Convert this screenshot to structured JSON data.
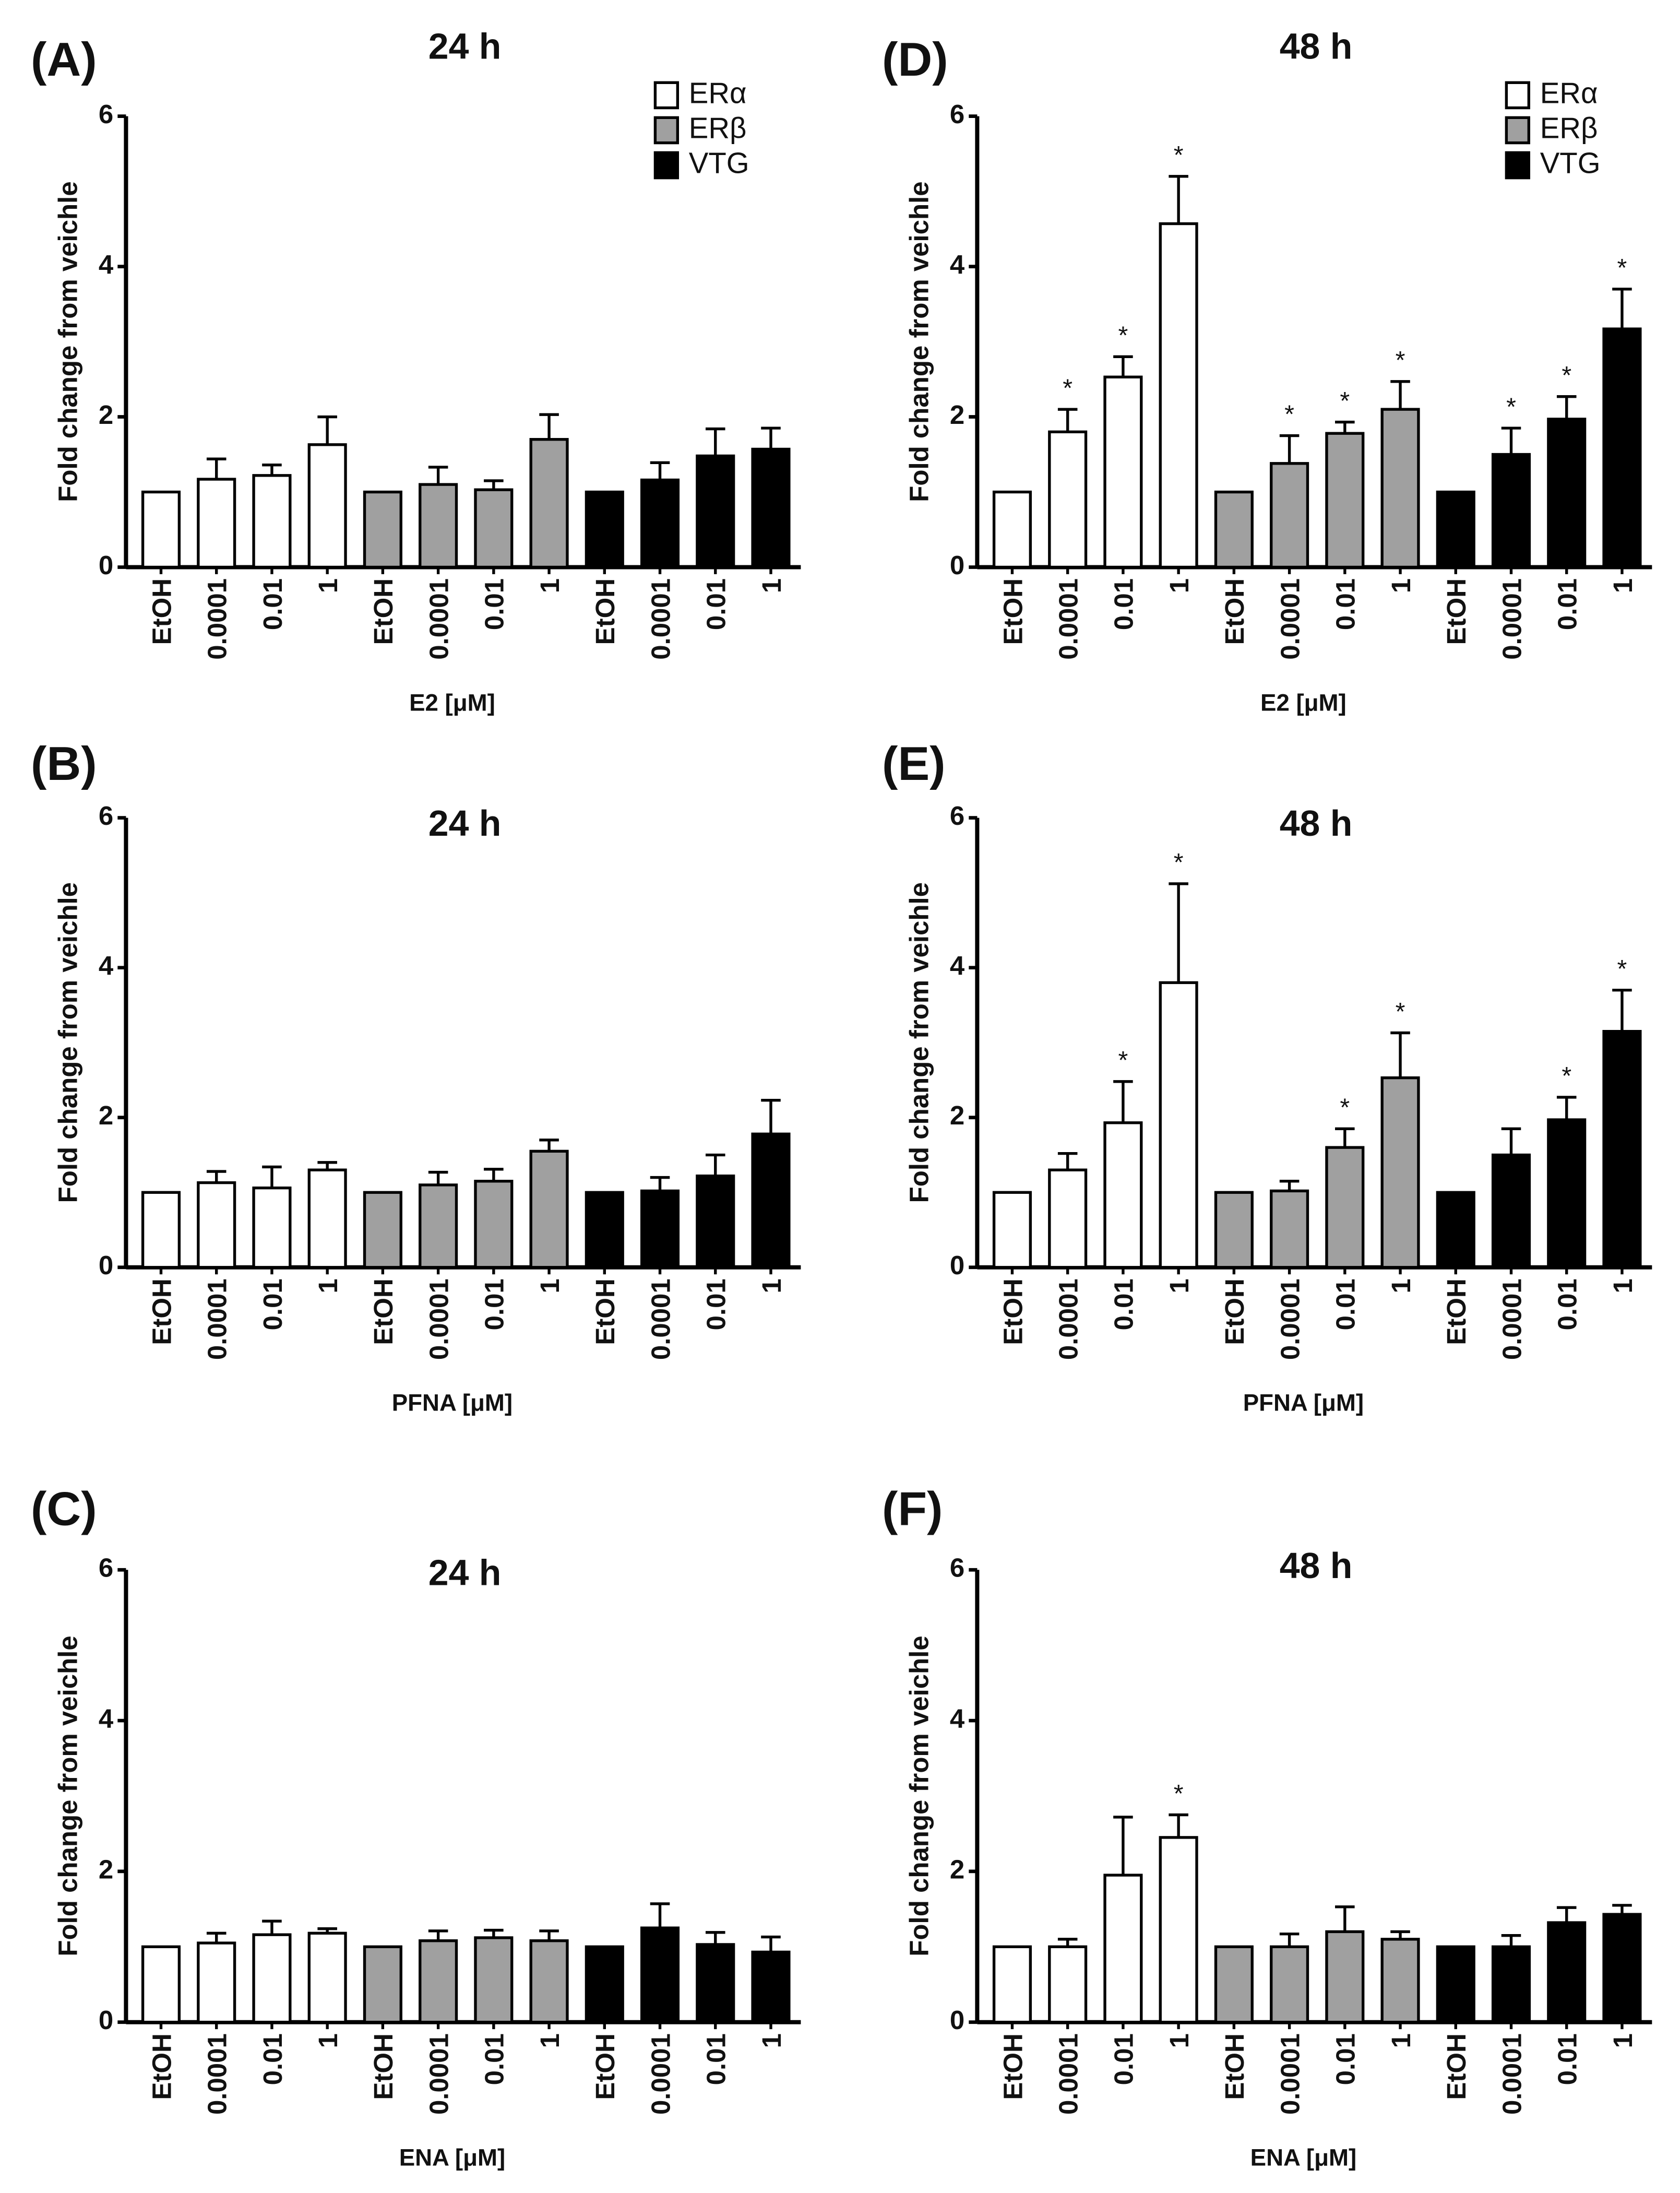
{
  "chart_data": [
    {
      "type": "bar",
      "panel": "(A)",
      "title": "24 h",
      "xlabel": "E2 [μM]",
      "ylabel": "Fold change from veichle",
      "legend": true,
      "categories": [
        "EtOH",
        "0.0001",
        "0.01",
        "1"
      ],
      "ylim": [
        0,
        6
      ],
      "yticks": [
        0,
        2,
        4,
        6
      ],
      "series": [
        {
          "name": "ERα",
          "color": "#ffffff",
          "values": [
            1.0,
            1.17,
            1.22,
            1.63
          ],
          "errors": [
            null,
            0.27,
            0.14,
            0.37
          ],
          "significance": [
            null,
            null,
            null,
            null
          ]
        },
        {
          "name": "ERβ",
          "color": "#a0a0a0",
          "values": [
            1.0,
            1.1,
            1.03,
            1.7
          ],
          "errors": [
            null,
            0.23,
            0.12,
            0.33
          ],
          "significance": [
            null,
            null,
            null,
            null
          ]
        },
        {
          "name": "VTG",
          "color": "#000000",
          "values": [
            1.0,
            1.16,
            1.48,
            1.57
          ],
          "errors": [
            null,
            0.23,
            0.36,
            0.28
          ],
          "significance": [
            null,
            null,
            null,
            null
          ]
        }
      ]
    },
    {
      "type": "bar",
      "panel": "(B)",
      "title": "24 h",
      "xlabel": "PFNA [μM]",
      "ylabel": "Fold change from veichle",
      "legend": false,
      "categories": [
        "EtOH",
        "0.0001",
        "0.01",
        "1"
      ],
      "ylim": [
        0,
        6
      ],
      "yticks": [
        0,
        2,
        4,
        6
      ],
      "series": [
        {
          "name": "ERα",
          "color": "#ffffff",
          "values": [
            1.0,
            1.13,
            1.06,
            1.3
          ],
          "errors": [
            null,
            0.15,
            0.28,
            0.1
          ],
          "significance": [
            null,
            null,
            null,
            null
          ]
        },
        {
          "name": "ERβ",
          "color": "#a0a0a0",
          "values": [
            1.0,
            1.1,
            1.15,
            1.55
          ],
          "errors": [
            null,
            0.17,
            0.16,
            0.15
          ],
          "significance": [
            null,
            null,
            null,
            null
          ]
        },
        {
          "name": "VTG",
          "color": "#000000",
          "values": [
            1.0,
            1.02,
            1.22,
            1.78
          ],
          "errors": [
            null,
            0.18,
            0.28,
            0.45
          ],
          "significance": [
            null,
            null,
            null,
            null
          ]
        }
      ]
    },
    {
      "type": "bar",
      "panel": "(C)",
      "title": "24 h",
      "xlabel": "ENA [μM]",
      "ylabel": "Fold change from veichle",
      "legend": false,
      "categories": [
        "EtOH",
        "0.0001",
        "0.01",
        "1"
      ],
      "ylim": [
        0,
        6
      ],
      "yticks": [
        0,
        2,
        4,
        6
      ],
      "series": [
        {
          "name": "ERα",
          "color": "#ffffff",
          "values": [
            1.0,
            1.05,
            1.16,
            1.18
          ],
          "errors": [
            null,
            0.13,
            0.18,
            0.06
          ],
          "significance": [
            null,
            null,
            null,
            null
          ]
        },
        {
          "name": "ERβ",
          "color": "#a0a0a0",
          "values": [
            1.0,
            1.08,
            1.12,
            1.08
          ],
          "errors": [
            null,
            0.13,
            0.1,
            0.13
          ],
          "significance": [
            null,
            null,
            null,
            null
          ]
        },
        {
          "name": "VTG",
          "color": "#000000",
          "values": [
            1.0,
            1.25,
            1.03,
            0.93
          ],
          "errors": [
            null,
            0.32,
            0.16,
            0.2
          ],
          "significance": [
            null,
            null,
            null,
            null
          ]
        }
      ]
    },
    {
      "type": "bar",
      "panel": "(D)",
      "title": "48 h",
      "xlabel": "E2 [μM]",
      "ylabel": "Fold change from veichle",
      "legend": true,
      "categories": [
        "EtOH",
        "0.0001",
        "0.01",
        "1"
      ],
      "ylim": [
        0,
        6
      ],
      "yticks": [
        0,
        2,
        4,
        6
      ],
      "series": [
        {
          "name": "ERα",
          "color": "#ffffff",
          "values": [
            1.0,
            1.8,
            2.53,
            4.57
          ],
          "errors": [
            null,
            0.3,
            0.27,
            0.63
          ],
          "significance": [
            null,
            "*",
            "*",
            "*"
          ]
        },
        {
          "name": "ERβ",
          "color": "#a0a0a0",
          "values": [
            1.0,
            1.38,
            1.78,
            2.1
          ],
          "errors": [
            null,
            0.37,
            0.15,
            0.37
          ],
          "significance": [
            null,
            "*",
            "*",
            "*"
          ]
        },
        {
          "name": "VTG",
          "color": "#000000",
          "values": [
            1.0,
            1.5,
            1.97,
            3.17
          ],
          "errors": [
            null,
            0.35,
            0.3,
            0.53
          ],
          "significance": [
            null,
            "*",
            "*",
            "*"
          ]
        }
      ]
    },
    {
      "type": "bar",
      "panel": "(E)",
      "title": "48 h",
      "xlabel": "PFNA [μM]",
      "ylabel": "Fold change from veichle",
      "legend": false,
      "categories": [
        "EtOH",
        "0.0001",
        "0.01",
        "1"
      ],
      "ylim": [
        0,
        6
      ],
      "yticks": [
        0,
        2,
        4,
        6
      ],
      "series": [
        {
          "name": "ERα",
          "color": "#ffffff",
          "values": [
            1.0,
            1.3,
            1.93,
            3.8
          ],
          "errors": [
            null,
            0.22,
            0.55,
            1.32
          ],
          "significance": [
            null,
            null,
            "*",
            "*"
          ]
        },
        {
          "name": "ERβ",
          "color": "#a0a0a0",
          "values": [
            1.0,
            1.02,
            1.6,
            2.53
          ],
          "errors": [
            null,
            0.13,
            0.25,
            0.6
          ],
          "significance": [
            null,
            null,
            "*",
            "*"
          ]
        },
        {
          "name": "VTG",
          "color": "#000000",
          "values": [
            1.0,
            1.5,
            1.97,
            3.15
          ],
          "errors": [
            null,
            0.35,
            0.3,
            0.55
          ],
          "significance": [
            null,
            null,
            "*",
            "*"
          ]
        }
      ]
    },
    {
      "type": "bar",
      "panel": "(F)",
      "title": "48 h",
      "xlabel": "ENA [μM]",
      "ylabel": "Fold change from veichle",
      "legend": false,
      "categories": [
        "EtOH",
        "0.0001",
        "0.01",
        "1"
      ],
      "ylim": [
        0,
        6
      ],
      "yticks": [
        0,
        2,
        4,
        6
      ],
      "series": [
        {
          "name": "ERα",
          "color": "#ffffff",
          "values": [
            1.0,
            1.0,
            1.95,
            2.45
          ],
          "errors": [
            null,
            0.1,
            0.77,
            0.3
          ],
          "significance": [
            null,
            null,
            null,
            "*"
          ]
        },
        {
          "name": "ERβ",
          "color": "#a0a0a0",
          "values": [
            1.0,
            1.0,
            1.2,
            1.1
          ],
          "errors": [
            null,
            0.17,
            0.33,
            0.1
          ],
          "significance": [
            null,
            null,
            null,
            null
          ]
        },
        {
          "name": "VTG",
          "color": "#000000",
          "values": [
            1.0,
            1.0,
            1.32,
            1.43
          ],
          "errors": [
            null,
            0.15,
            0.2,
            0.12
          ],
          "significance": [
            null,
            null,
            null,
            null
          ]
        }
      ]
    }
  ]
}
